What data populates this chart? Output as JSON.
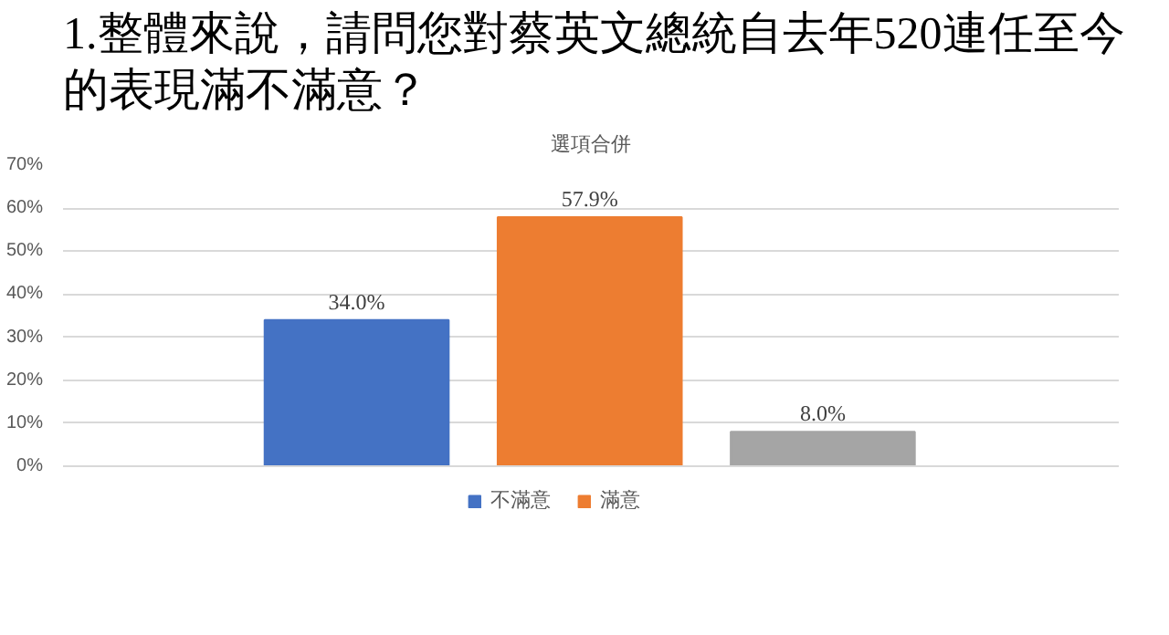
{
  "chart_data": {
    "type": "bar",
    "title": "1.整體來說，請問您對蔡英文總統自去年520連任至今的表現滿不滿意？",
    "subtitle": "選項合併",
    "categories": [
      null,
      null,
      null
    ],
    "series": [
      {
        "name": "不滿意",
        "color": "#4472c4",
        "values": [
          34.0,
          null,
          null
        ],
        "value_labels": [
          "34.0%",
          null,
          null
        ]
      },
      {
        "name": "滿意",
        "color": "#ed7d31",
        "values": [
          null,
          57.9,
          null
        ],
        "value_labels": [
          null,
          "57.9%",
          null
        ]
      },
      {
        "color": "#a5a5a5",
        "values": [
          null,
          null,
          8.0
        ],
        "value_labels": [
          null,
          null,
          "8.0%"
        ]
      }
    ],
    "ylim": [
      0,
      70
    ],
    "yticks": [
      {
        "value": 0,
        "label": "0%"
      },
      {
        "value": 10,
        "label": "10%"
      },
      {
        "value": 20,
        "label": "20%"
      },
      {
        "value": 30,
        "label": "30%"
      },
      {
        "value": 40,
        "label": "40%"
      },
      {
        "value": 50,
        "label": "50%"
      },
      {
        "value": 60,
        "label": "60%"
      },
      {
        "value": 70,
        "label": "70%"
      }
    ],
    "grid": "y",
    "legend": "bottom",
    "data_labels": true,
    "tick_labels": "y"
  }
}
